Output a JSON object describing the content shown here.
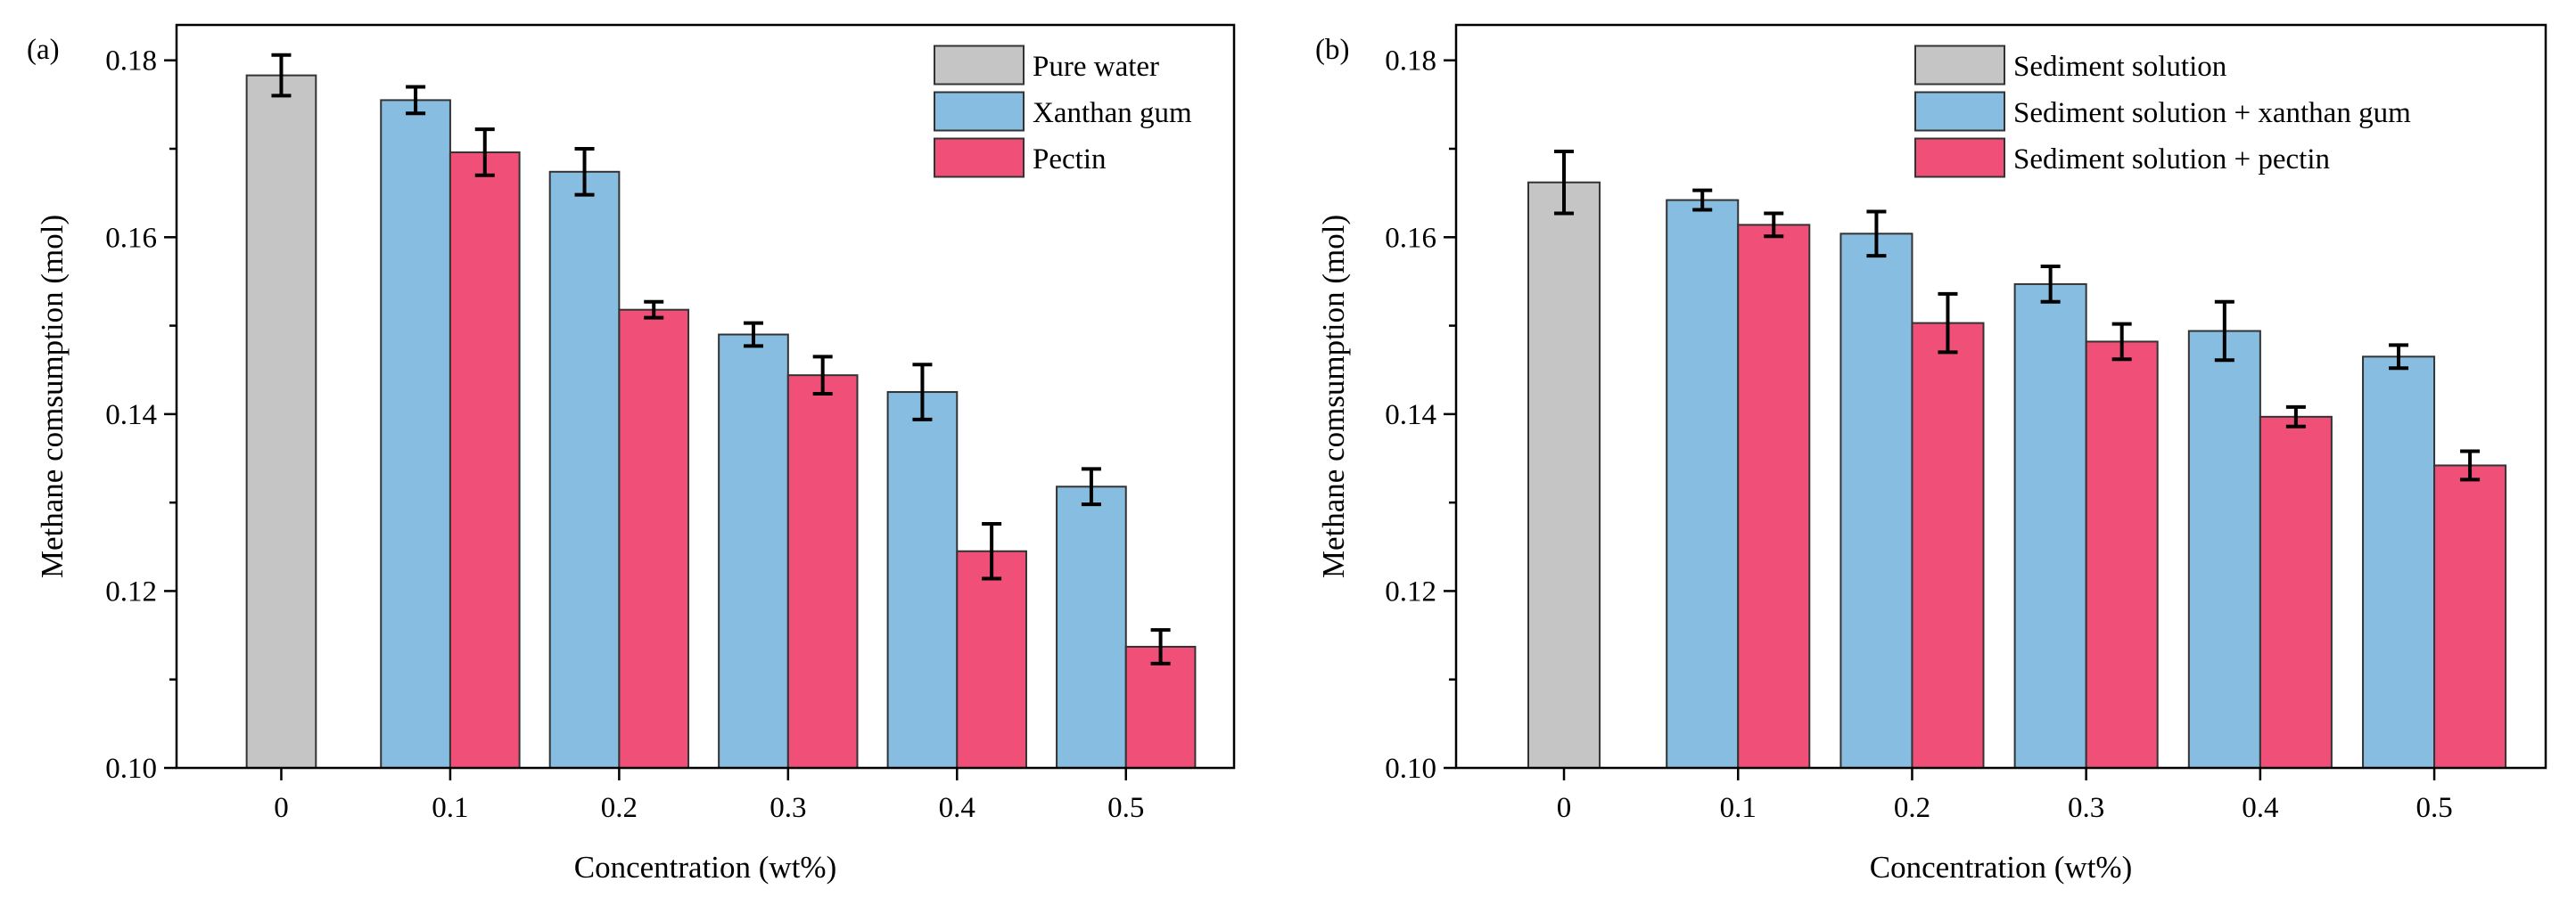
{
  "figure": {
    "panels": [
      "(a)",
      "(b)"
    ]
  },
  "colors": {
    "gray": "#c5c5c5",
    "blue": "#86bde0",
    "pink": "#f04f78"
  },
  "chart_data": [
    {
      "type": "bar",
      "panel_label": "(a)",
      "title": "",
      "xlabel": "Concentration (wt%)",
      "ylabel": "Methane comsumption (mol)",
      "ylim": [
        0.1,
        0.184
      ],
      "yticks": [
        "0.10",
        "0.12",
        "0.14",
        "0.16",
        "0.18"
      ],
      "categories": [
        "0",
        "0.1",
        "0.2",
        "0.3",
        "0.4",
        "0.5"
      ],
      "legend_position": "top-right",
      "series": [
        {
          "name": "Pure water",
          "color": "#c5c5c5",
          "values": [
            0.1783,
            null,
            null,
            null,
            null,
            null
          ],
          "errors": [
            0.0023,
            null,
            null,
            null,
            null,
            null
          ]
        },
        {
          "name": "Xanthan gum",
          "color": "#86bde0",
          "values": [
            null,
            0.1755,
            0.1674,
            0.149,
            0.1425,
            0.1318
          ],
          "errors": [
            null,
            0.0015,
            0.0026,
            0.0013,
            0.0031,
            0.002
          ]
        },
        {
          "name": "Pectin",
          "color": "#f04f78",
          "values": [
            null,
            0.1696,
            0.1518,
            0.1444,
            0.1245,
            0.1137
          ],
          "errors": [
            null,
            0.0026,
            0.0009,
            0.0021,
            0.0031,
            0.0019
          ]
        }
      ]
    },
    {
      "type": "bar",
      "panel_label": "(b)",
      "title": "",
      "xlabel": "Concentration (wt%)",
      "ylabel": "Methane comsumption (mol)",
      "ylim": [
        0.1,
        0.184
      ],
      "yticks": [
        "0.10",
        "0.12",
        "0.14",
        "0.16",
        "0.18"
      ],
      "categories": [
        "0",
        "0.1",
        "0.2",
        "0.3",
        "0.4",
        "0.5"
      ],
      "legend_position": "top-right",
      "series": [
        {
          "name": "Sediment solution",
          "color": "#c5c5c5",
          "values": [
            0.1662,
            null,
            null,
            null,
            null,
            null
          ],
          "errors": [
            0.0035,
            null,
            null,
            null,
            null,
            null
          ]
        },
        {
          "name": "Sediment solution + xanthan gum",
          "color": "#86bde0",
          "values": [
            null,
            0.1642,
            0.1604,
            0.1547,
            0.1494,
            0.1465
          ],
          "errors": [
            null,
            0.0011,
            0.0025,
            0.002,
            0.0033,
            0.0013
          ]
        },
        {
          "name": "Sediment solution + pectin",
          "color": "#f04f78",
          "values": [
            null,
            0.1614,
            0.1503,
            0.1482,
            0.1397,
            0.1342
          ],
          "errors": [
            null,
            0.0013,
            0.0033,
            0.002,
            0.0011,
            0.0016
          ]
        }
      ]
    }
  ]
}
